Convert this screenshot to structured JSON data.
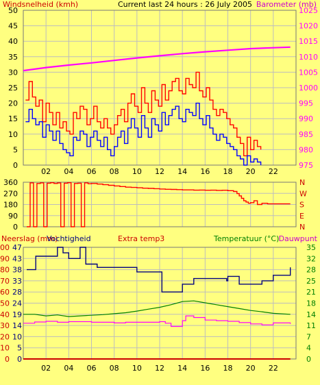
{
  "colors": {
    "background": "#ffff80",
    "frame": "#777777",
    "grid": "#bdbdbd",
    "wind": "#ff0000",
    "gust": "#0000ff",
    "barometer": "#ff00ff",
    "wind_dir": "#ff0000",
    "humidity": "#000080",
    "temperature": "#008000",
    "dewpoint": "#ff00ff",
    "rain": "#cc0000",
    "label_red": "#cc0000",
    "label_magenta": "#cc00cc",
    "label_green": "#008000",
    "label_navy": "#000080"
  },
  "chart_data": [
    {
      "type": "line",
      "panel": "wind-barometer",
      "title": "Current last 24 hours : 26 July 2005",
      "ylabel_left": "Windsnelheid (kmh)",
      "ylabel_right": "Barometer (mb)",
      "x_ticks": [
        "02",
        "04",
        "06",
        "08",
        "10",
        "12",
        "14",
        "16",
        "18",
        "20",
        "22"
      ],
      "y_ticks_left": [
        "0",
        "5",
        "10",
        "15",
        "20",
        "25",
        "30",
        "35",
        "40",
        "45",
        "50"
      ],
      "y_ticks_right": [
        "975",
        "980",
        "985",
        "990",
        "995",
        "1000",
        "1005",
        "1010",
        "1015",
        "1020",
        "1025"
      ],
      "xlim": [
        0,
        24
      ],
      "ylim_left": [
        0,
        50
      ],
      "ylim_right": [
        975,
        1025
      ],
      "series": [
        {
          "name": "",
          "axis": "left",
          "color": "red",
          "x": [
            0.2,
            0.5,
            0.8,
            1.1,
            1.4,
            1.7,
            2.0,
            2.3,
            2.6,
            2.9,
            3.2,
            3.5,
            3.8,
            4.1,
            4.4,
            4.7,
            5.0,
            5.3,
            5.6,
            5.9,
            6.2,
            6.5,
            6.8,
            7.1,
            7.4,
            7.7,
            8.0,
            8.3,
            8.6,
            8.9,
            9.2,
            9.5,
            9.8,
            10.1,
            10.4,
            10.7,
            11.0,
            11.3,
            11.6,
            11.9,
            12.2,
            12.5,
            12.8,
            13.1,
            13.4,
            13.7,
            14.0,
            14.3,
            14.6,
            14.9,
            15.2,
            15.5,
            15.8,
            16.1,
            16.4,
            16.7,
            17.0,
            17.3,
            17.6,
            17.9,
            18.2,
            18.5,
            18.8,
            19.1,
            19.4,
            19.7,
            20.0,
            20.3,
            20.6,
            20.9
          ],
          "values": [
            21,
            27,
            22,
            19,
            21,
            14,
            20,
            17,
            13,
            17,
            12,
            14,
            11,
            10,
            17,
            15,
            19,
            18,
            13,
            15,
            19,
            14,
            12,
            15,
            12,
            10,
            13,
            16,
            18,
            14,
            20,
            23,
            19,
            17,
            25,
            20,
            17,
            24,
            21,
            19,
            26,
            21,
            24,
            27,
            28,
            24,
            23,
            28,
            26,
            25,
            30,
            24,
            22,
            25,
            21,
            18,
            16,
            18,
            17,
            15,
            13,
            12,
            9,
            7,
            3,
            9,
            5,
            8,
            6,
            5
          ]
        },
        {
          "name": "",
          "axis": "left",
          "color": "blue",
          "x": [
            0.2,
            0.5,
            0.8,
            1.1,
            1.4,
            1.7,
            2.0,
            2.3,
            2.6,
            2.9,
            3.2,
            3.5,
            3.8,
            4.1,
            4.4,
            4.7,
            5.0,
            5.3,
            5.6,
            5.9,
            6.2,
            6.5,
            6.8,
            7.1,
            7.4,
            7.7,
            8.0,
            8.3,
            8.6,
            8.9,
            9.2,
            9.5,
            9.8,
            10.1,
            10.4,
            10.7,
            11.0,
            11.3,
            11.6,
            11.9,
            12.2,
            12.5,
            12.8,
            13.1,
            13.4,
            13.7,
            14.0,
            14.3,
            14.6,
            14.9,
            15.2,
            15.5,
            15.8,
            16.1,
            16.4,
            16.7,
            17.0,
            17.3,
            17.6,
            17.9,
            18.2,
            18.5,
            18.8,
            19.1,
            19.4,
            19.7,
            20.0,
            20.3,
            20.6,
            20.9
          ],
          "values": [
            14,
            18,
            15,
            13,
            14,
            9,
            13,
            11,
            8,
            11,
            7,
            5,
            4,
            3,
            9,
            8,
            11,
            10,
            6,
            9,
            11,
            8,
            6,
            9,
            5,
            3,
            6,
            9,
            11,
            7,
            12,
            15,
            12,
            9,
            16,
            12,
            9,
            15,
            13,
            11,
            17,
            13,
            16,
            18,
            19,
            15,
            14,
            18,
            17,
            16,
            20,
            15,
            13,
            16,
            12,
            10,
            8,
            10,
            9,
            7,
            6,
            5,
            3,
            2,
            0,
            3,
            1,
            2,
            1,
            0
          ]
        },
        {
          "name": "",
          "axis": "right",
          "color": "magenta",
          "x": [
            0,
            2,
            4,
            6,
            8,
            10,
            12,
            14,
            16,
            18,
            20,
            22,
            23.5
          ],
          "values": [
            1005.5,
            1006.5,
            1007.3,
            1008.0,
            1008.8,
            1009.6,
            1010.3,
            1011.0,
            1011.6,
            1012.1,
            1012.6,
            1012.9,
            1013.1
          ]
        }
      ]
    },
    {
      "type": "line",
      "panel": "wind-direction",
      "y_ticks_left": [
        "0",
        "90",
        "180",
        "270",
        "360"
      ],
      "y_ticks_right": [
        "N",
        "E",
        "S",
        "W",
        "N"
      ],
      "ylim": [
        0,
        360
      ],
      "series": [
        {
          "name": "",
          "color": "red",
          "x": [
            0.3,
            0.6,
            0.9,
            1.2,
            1.5,
            1.8,
            2.1,
            2.4,
            2.7,
            3.0,
            3.3,
            3.6,
            3.9,
            4.2,
            4.5,
            4.8,
            5.1,
            5.4,
            5.7,
            6.0,
            6.5,
            7.0,
            7.5,
            8.0,
            8.5,
            9.0,
            9.5,
            10.0,
            10.5,
            11.0,
            11.5,
            12.0,
            12.5,
            13.0,
            13.5,
            14.0,
            14.5,
            15.0,
            15.5,
            16.0,
            16.5,
            17.0,
            17.5,
            18.0,
            18.5,
            18.8,
            19.0,
            19.2,
            19.4,
            19.6,
            19.8,
            20.0,
            20.3,
            20.6,
            21.0,
            21.5,
            22.0,
            22.5,
            23.0,
            23.5
          ],
          "values": [
            0,
            355,
            0,
            350,
            355,
            0,
            352,
            356,
            350,
            354,
            0,
            352,
            356,
            0,
            350,
            352,
            0,
            355,
            348,
            350,
            345,
            340,
            335,
            330,
            325,
            320,
            318,
            315,
            312,
            310,
            308,
            305,
            303,
            302,
            300,
            298,
            298,
            296,
            297,
            295,
            296,
            294,
            295,
            292,
            285,
            268,
            250,
            230,
            210,
            200,
            190,
            195,
            210,
            180,
            190,
            185,
            185,
            185,
            185,
            185
          ]
        }
      ]
    },
    {
      "type": "line",
      "panel": "temp-humidity",
      "ylabel_left": "Neerslag (mm)",
      "ylabel_left2": "Vochtigheid",
      "ylabel_middle": "Extra temp3",
      "ylabel_right": "Temperatuur (°C)",
      "ylabel_right2": "Dauwpunt",
      "y_ticks_left": [
        "0",
        "10",
        "20",
        "30",
        "40",
        "50",
        "60",
        "70",
        "80",
        "90",
        "100"
      ],
      "y_ticks_left2": [
        "0",
        "5",
        "10",
        "14",
        "19",
        "24",
        "28",
        "33",
        "38",
        "43",
        "47"
      ],
      "y_ticks_right": [
        "0",
        "4",
        "7",
        "11",
        "14",
        "18",
        "21",
        "25",
        "28",
        "32",
        "35"
      ],
      "ylim_left": [
        0,
        100
      ],
      "ylim_right": [
        0,
        35
      ],
      "series": [
        {
          "name": "",
          "axis": "left",
          "color": "navy",
          "x": [
            0.3,
            1.0,
            1.1,
            2.9,
            3.0,
            3.5,
            4.0,
            4.5,
            5.0,
            5.5,
            6.5,
            9.0,
            10.0,
            11.5,
            12.1,
            12.2,
            13.8,
            14.0,
            14.6,
            15.0,
            16.0,
            17.0,
            17.9,
            18.0,
            19.0,
            20.0,
            21.0,
            22.0,
            23.5
          ],
          "values": [
            80,
            80,
            92,
            92,
            100,
            95,
            90,
            90,
            100,
            85,
            82,
            82,
            78,
            78,
            78,
            60,
            60,
            67,
            67,
            72,
            72,
            72,
            70,
            74,
            67,
            67,
            70,
            75,
            82
          ]
        },
        {
          "name": "",
          "axis": "right",
          "color": "green",
          "x": [
            0,
            1,
            2,
            3,
            4,
            5,
            6,
            7,
            8,
            9,
            10,
            11,
            12,
            13,
            14,
            15,
            16,
            17,
            18,
            19,
            20,
            21,
            22,
            23.5
          ],
          "values": [
            14,
            14,
            13.5,
            13.8,
            13.3,
            13.5,
            13.7,
            13.9,
            14.2,
            14.5,
            15,
            15.6,
            16.2,
            17,
            18,
            18.2,
            17.6,
            17,
            16.4,
            15.8,
            15.2,
            14.8,
            14.3,
            14
          ]
        },
        {
          "name": "",
          "axis": "right",
          "color": "magenta",
          "x": [
            0,
            1,
            2,
            3,
            4,
            5,
            6,
            7,
            8,
            9,
            10,
            11,
            12,
            12.5,
            13,
            14,
            14.3,
            15,
            16,
            17,
            18,
            19,
            20,
            21,
            22,
            23.5
          ],
          "values": [
            11.2,
            11.6,
            11.8,
            11.5,
            11.7,
            11.7,
            11.5,
            11.5,
            11.3,
            11.5,
            11.5,
            11.5,
            11.7,
            11.2,
            10.2,
            12,
            13.5,
            13,
            12.2,
            12,
            11.8,
            11.4,
            11,
            10.7,
            11.3,
            11
          ]
        },
        {
          "name": "",
          "axis": "right",
          "color": "darkred",
          "x": [
            0,
            5,
            10,
            15,
            20,
            23.5
          ],
          "values": [
            0,
            0,
            0,
            0,
            0,
            0
          ]
        }
      ]
    }
  ]
}
